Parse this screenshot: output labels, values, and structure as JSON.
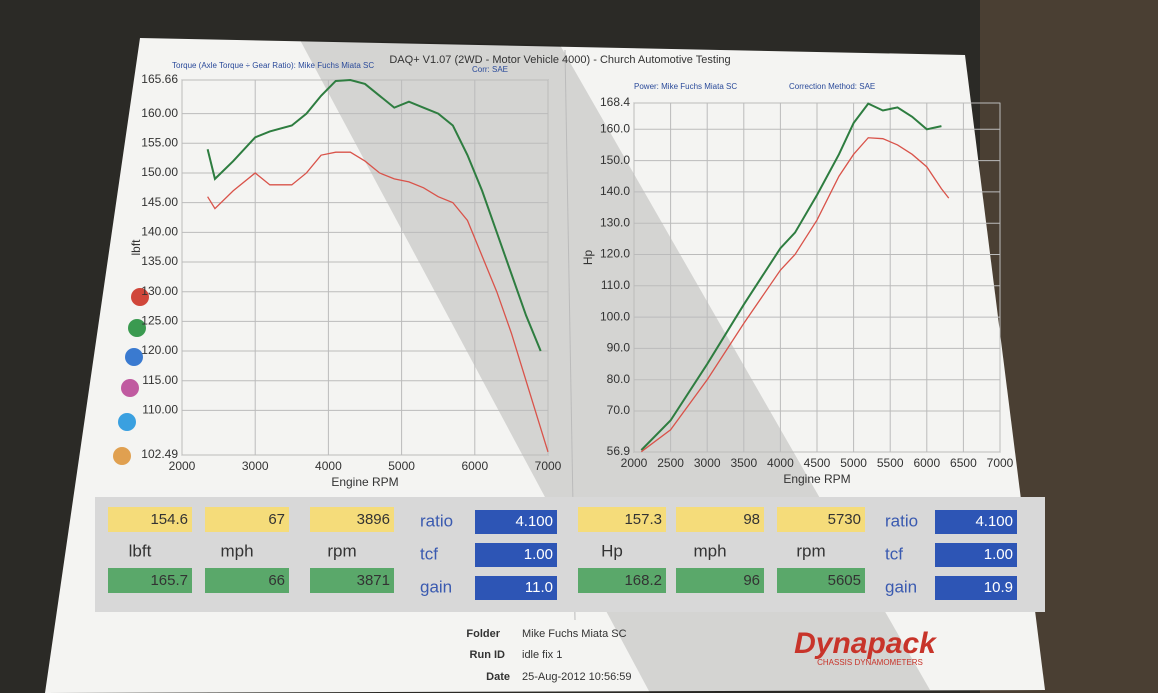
{
  "header": "DAQ+ V1.07 (2WD - Motor Vehicle 4000) - Church Automotive Testing",
  "chart_data": [
    {
      "type": "line",
      "subtitle": "Torque (Axle Torque ÷ Gear Ratio): Mike Fuchs Miata SC",
      "note": "Corr: SAE",
      "ylabel": "lbft",
      "xlabel": "Engine RPM",
      "xlim": [
        2000,
        7000
      ],
      "xticks": [
        2000,
        3000,
        4000,
        5000,
        6000,
        7000
      ],
      "ylim": [
        102.49,
        165.66
      ],
      "yticks": [
        102.49,
        {
          "value": 110,
          "label": "110.00"
        },
        {
          "value": 115,
          "label": "115.00"
        },
        {
          "value": 120,
          "label": "120.00"
        },
        {
          "value": 125,
          "label": "125.00"
        },
        {
          "value": 130,
          "label": "130.00"
        },
        {
          "value": 135,
          "label": "135.00"
        },
        {
          "value": 140,
          "label": "140.00"
        },
        {
          "value": 145,
          "label": "145.00"
        },
        {
          "value": 150,
          "label": "150.00"
        },
        {
          "value": 155,
          "label": "155.00"
        },
        {
          "value": 160,
          "label": "160.00"
        },
        165.66
      ],
      "grid": true,
      "x": [
        2350,
        2450,
        2700,
        3000,
        3200,
        3500,
        3700,
        3900,
        4100,
        4300,
        4500,
        4700,
        4900,
        5100,
        5300,
        5500,
        5700,
        5900,
        6100,
        6300,
        6500,
        6700,
        6900,
        7000
      ],
      "series": [
        {
          "color": "#2e7d40",
          "values": [
            154,
            149,
            152,
            156,
            157,
            158,
            160,
            163,
            165.5,
            165.66,
            165,
            163,
            161,
            162,
            161,
            160,
            158,
            153,
            147,
            140,
            133,
            126,
            120,
            null
          ]
        },
        {
          "color": "#d9534a",
          "values": [
            146,
            144,
            147,
            150,
            148,
            148,
            150,
            153,
            153.5,
            153.5,
            152,
            150,
            149,
            148.5,
            147.5,
            146,
            145,
            142,
            136,
            130,
            123,
            115,
            107,
            103
          ]
        }
      ]
    },
    {
      "type": "line",
      "subtitle": "Power: Mike Fuchs Miata SC",
      "note": "Correction Method: SAE",
      "ylabel": "Hp",
      "xlabel": "Engine RPM",
      "xlim": [
        2000,
        7000
      ],
      "xticks": [
        2000,
        2500,
        3000,
        3500,
        4000,
        4500,
        5000,
        5500,
        6000,
        6500,
        7000
      ],
      "ylim": [
        56.9,
        168.4
      ],
      "yticks": [
        56.9,
        {
          "value": 70,
          "label": "70.0"
        },
        {
          "value": 80,
          "label": "80.0"
        },
        {
          "value": 90,
          "label": "90.0"
        },
        {
          "value": 100,
          "label": "100.0"
        },
        {
          "value": 110,
          "label": "110.0"
        },
        {
          "value": 120,
          "label": "120.0"
        },
        {
          "value": 130,
          "label": "130.0"
        },
        {
          "value": 140,
          "label": "140.0"
        },
        {
          "value": 150,
          "label": "150.0"
        },
        {
          "value": 160,
          "label": "160.0"
        },
        168.4
      ],
      "grid": true,
      "x": [
        2100,
        2500,
        3000,
        3500,
        4000,
        4200,
        4500,
        4800,
        5000,
        5200,
        5400,
        5600,
        5800,
        6000,
        6200,
        6300
      ],
      "series": [
        {
          "color": "#2e7d40",
          "values": [
            57.5,
            67,
            85,
            104,
            122,
            127,
            139,
            152,
            162,
            168.2,
            166,
            167,
            164,
            160,
            161,
            null
          ]
        },
        {
          "color": "#d9534a",
          "values": [
            57,
            64,
            80,
            98,
            115,
            120,
            131,
            145,
            152,
            157.3,
            157,
            155,
            152,
            148,
            141,
            138
          ]
        }
      ]
    }
  ],
  "panels": [
    {
      "top": [
        "154.6",
        "67",
        "3896"
      ],
      "labels": [
        "lbft",
        "mph",
        "rpm"
      ],
      "bottom": [
        "165.7",
        "66",
        "3871"
      ],
      "side_labels": [
        "ratio",
        "tcf",
        "gain"
      ],
      "side_values": [
        "4.100",
        "1.00",
        "11.0"
      ]
    },
    {
      "top": [
        "157.3",
        "98",
        "5730"
      ],
      "labels": [
        "Hp",
        "mph",
        "rpm"
      ],
      "bottom": [
        "168.2",
        "96",
        "5605"
      ],
      "side_labels": [
        "ratio",
        "tcf",
        "gain"
      ],
      "side_values": [
        "4.100",
        "1.00",
        "10.9"
      ]
    }
  ],
  "footer": {
    "folder_label": "Folder",
    "folder": "Mike Fuchs Miata SC",
    "run_label": "Run ID",
    "run_id": "idle fix 1",
    "date_label": "Date",
    "date": "25-Aug-2012 10:56:59",
    "logo": "Dynapack",
    "logo_sub": "CHASSIS DYNAMOMETERS"
  }
}
